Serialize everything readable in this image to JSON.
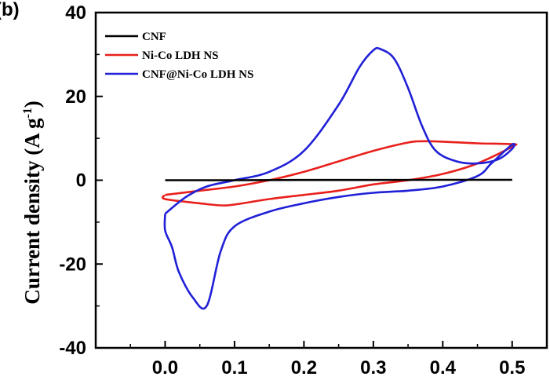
{
  "chart_data": {
    "type": "line",
    "panel_label": "(b)",
    "xlabel": "",
    "ylabel": "Current density (A g",
    "ylabel_sup": "-1",
    "ylabel_end": ")",
    "xlim": [
      -0.1,
      0.55
    ],
    "ylim": [
      -40,
      40
    ],
    "x_ticks": [
      0.0,
      0.1,
      0.2,
      0.3,
      0.4,
      0.5
    ],
    "x_tick_labels": [
      "0.0",
      "0.1",
      "0.2",
      "0.3",
      "0.4",
      "0.5"
    ],
    "y_ticks": [
      -40,
      -20,
      0,
      20,
      40
    ],
    "y_tick_labels": [
      "-40",
      "-20",
      "0",
      "20",
      "40"
    ],
    "legend_position": "top-left",
    "series": [
      {
        "name": "CNF",
        "color": "#000000",
        "x": [
          0.0,
          0.1,
          0.2,
          0.3,
          0.4,
          0.5
        ],
        "y": [
          0.0,
          0.0,
          0.05,
          0.05,
          0.1,
          0.1
        ]
      },
      {
        "name": "Ni-Co LDH NS",
        "color": "#e8201c",
        "x": [
          0.0,
          0.05,
          0.1,
          0.15,
          0.2,
          0.25,
          0.3,
          0.35,
          0.37,
          0.4,
          0.45,
          0.5,
          0.5,
          0.45,
          0.4,
          0.35,
          0.3,
          0.25,
          0.2,
          0.15,
          0.1,
          0.08,
          0.05,
          0.0,
          0.0
        ],
        "y": [
          -3.5,
          -2.5,
          -1.5,
          0.0,
          2.0,
          4.5,
          7.0,
          9.0,
          9.3,
          9.2,
          8.8,
          8.6,
          8.0,
          4.0,
          1.5,
          0.0,
          -1.0,
          -2.5,
          -3.5,
          -4.5,
          -5.8,
          -6.0,
          -5.5,
          -4.5,
          -3.5
        ]
      },
      {
        "name": "CNF@Ni-Co LDH NS",
        "color": "#2020d8",
        "x": [
          0.0,
          0.03,
          0.06,
          0.1,
          0.15,
          0.2,
          0.25,
          0.28,
          0.3,
          0.31,
          0.33,
          0.35,
          0.37,
          0.39,
          0.42,
          0.45,
          0.48,
          0.5,
          0.5,
          0.47,
          0.45,
          0.4,
          0.35,
          0.3,
          0.25,
          0.2,
          0.15,
          0.1,
          0.08,
          0.06,
          0.04,
          0.02,
          0.01,
          0.0,
          0.0
        ],
        "y": [
          -8.0,
          -4.0,
          -1.5,
          0.0,
          2.0,
          7.0,
          18.0,
          27.0,
          31.0,
          31.3,
          29.0,
          22.0,
          13.0,
          7.0,
          4.5,
          4.0,
          5.0,
          7.5,
          8.5,
          4.0,
          1.0,
          -1.5,
          -2.5,
          -3.0,
          -4.0,
          -5.5,
          -7.5,
          -11.0,
          -17.0,
          -30.0,
          -28.0,
          -22.0,
          -16.0,
          -12.0,
          -8.0
        ]
      }
    ]
  }
}
